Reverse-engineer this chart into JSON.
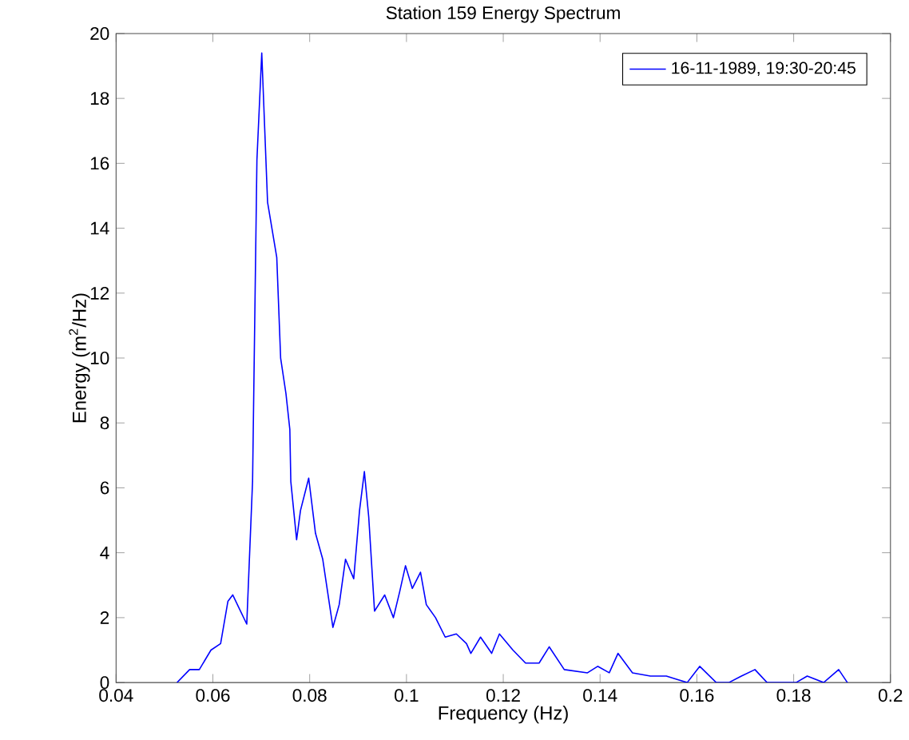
{
  "chart_data": {
    "type": "line",
    "title": "Station 159 Energy Spectrum",
    "xlabel": "Frequency (Hz)",
    "ylabel": "Energy (m$^{2}$/Hz)",
    "x": [
      0.0526,
      0.0552,
      0.0572,
      0.0596,
      0.0616,
      0.0631,
      0.0641,
      0.067,
      0.0682,
      0.0691,
      0.0701,
      0.0713,
      0.0732,
      0.074,
      0.0751,
      0.0759,
      0.0761,
      0.0773,
      0.0781,
      0.0798,
      0.0812,
      0.0827,
      0.0848,
      0.0861,
      0.0874,
      0.0891,
      0.0903,
      0.0913,
      0.0922,
      0.0934,
      0.0955,
      0.0973,
      0.0986,
      0.0998,
      0.1012,
      0.1029,
      0.1041,
      0.106,
      0.108,
      0.1103,
      0.1124,
      0.1133,
      0.1153,
      0.1176,
      0.1192,
      0.122,
      0.1246,
      0.1274,
      0.1295,
      0.1326,
      0.1374,
      0.1395,
      0.1419,
      0.1437,
      0.1467,
      0.1504,
      0.1537,
      0.1558,
      0.158,
      0.1606,
      0.164,
      0.1666,
      0.1692,
      0.172,
      0.1745,
      0.1805,
      0.1828,
      0.1862,
      0.1893,
      0.1911
    ],
    "series": [
      {
        "name": "16-11-1989, 19:30-20:45",
        "color": "#0000ff",
        "values": [
          0,
          0.4,
          0.4,
          1.0,
          1.2,
          2.5,
          2.7,
          1.8,
          6.2,
          16.1,
          19.4,
          14.8,
          13.1,
          10.0,
          8.9,
          7.8,
          6.2,
          4.4,
          5.3,
          6.3,
          4.6,
          3.8,
          1.7,
          2.4,
          3.8,
          3.2,
          5.3,
          6.5,
          5.1,
          2.2,
          2.7,
          2.0,
          2.8,
          3.6,
          2.9,
          3.4,
          2.4,
          2.0,
          1.4,
          1.5,
          1.2,
          0.9,
          1.4,
          0.9,
          1.5,
          1.0,
          0.6,
          0.6,
          1.1,
          0.4,
          0.3,
          0.5,
          0.3,
          0.9,
          0.3,
          0.2,
          0.2,
          0.1,
          0,
          0.5,
          0,
          0,
          0.2,
          0.4,
          0,
          0,
          0.2,
          0,
          0.4,
          0
        ]
      }
    ],
    "xlim": [
      0.04,
      0.2
    ],
    "ylim": [
      0,
      20
    ],
    "xticks": [
      0.04,
      0.06,
      0.08,
      0.1,
      0.12,
      0.14,
      0.16,
      0.18,
      0.2
    ],
    "yticks": [
      0,
      2,
      4,
      6,
      8,
      10,
      12,
      14,
      16,
      18,
      20
    ],
    "legend": "top right",
    "line_style": "solid"
  }
}
